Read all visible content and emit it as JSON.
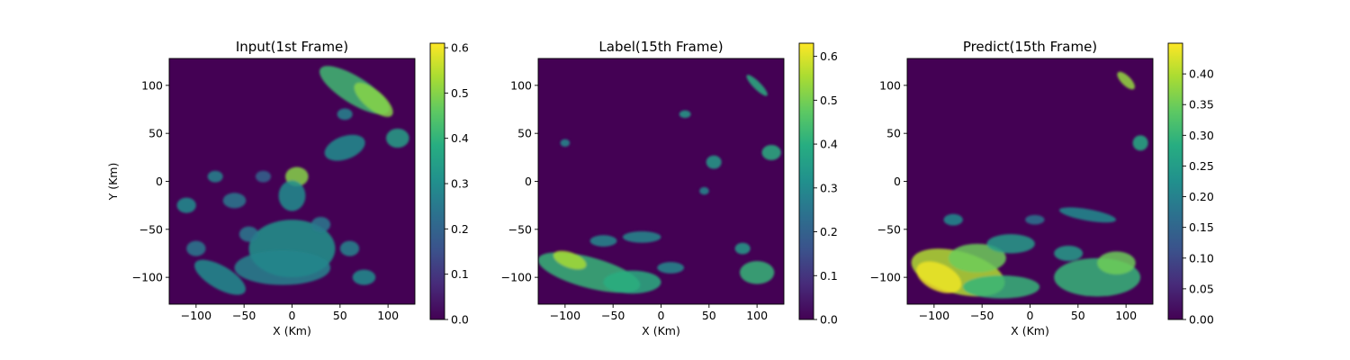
{
  "chart_data": [
    {
      "type": "heatmap",
      "title": "Input(1st Frame)",
      "xlabel": "X (Km)",
      "ylabel": "Y (Km)",
      "xlim": [
        -128,
        128
      ],
      "ylim": [
        -128,
        128
      ],
      "xticks": [
        -100,
        -50,
        0,
        50,
        100
      ],
      "yticks": [
        -100,
        -50,
        0,
        50,
        100
      ],
      "xtick_labels": [
        "−100",
        "−50",
        "0",
        "50",
        "100"
      ],
      "ytick_labels": [
        "−100",
        "−50",
        "0",
        "50",
        "100"
      ],
      "colorbar": {
        "range": [
          0,
          0.61
        ],
        "ticks": [
          0,
          0.1,
          0.2,
          0.3,
          0.4,
          0.5,
          0.6
        ],
        "tick_labels": [
          "0.0",
          "0.1",
          "0.2",
          "0.3",
          "0.4",
          "0.5",
          "0.6"
        ]
      },
      "regions": [
        {
          "x": 65,
          "y": 95,
          "rx": 42,
          "ry": 14,
          "rot": -32,
          "v": 0.42
        },
        {
          "x": 85,
          "y": 85,
          "rx": 25,
          "ry": 10,
          "rot": -40,
          "v": 0.5
        },
        {
          "x": 5,
          "y": 5,
          "rx": 12,
          "ry": 10,
          "rot": 0,
          "v": 0.5
        },
        {
          "x": 0,
          "y": -15,
          "rx": 14,
          "ry": 16,
          "rot": 0,
          "v": 0.3
        },
        {
          "x": 0,
          "y": -70,
          "rx": 45,
          "ry": 30,
          "rot": 0,
          "v": 0.32
        },
        {
          "x": -10,
          "y": -90,
          "rx": 50,
          "ry": 18,
          "rot": 0,
          "v": 0.28
        },
        {
          "x": 55,
          "y": 35,
          "rx": 22,
          "ry": 12,
          "rot": 20,
          "v": 0.3
        },
        {
          "x": 110,
          "y": 45,
          "rx": 12,
          "ry": 10,
          "rot": 0,
          "v": 0.35
        },
        {
          "x": 55,
          "y": 70,
          "rx": 8,
          "ry": 6,
          "rot": 0,
          "v": 0.28
        },
        {
          "x": -75,
          "y": -100,
          "rx": 30,
          "ry": 12,
          "rot": -30,
          "v": 0.3
        },
        {
          "x": -110,
          "y": -25,
          "rx": 10,
          "ry": 8,
          "rot": 0,
          "v": 0.3
        },
        {
          "x": -80,
          "y": 5,
          "rx": 8,
          "ry": 6,
          "rot": 0,
          "v": 0.28
        },
        {
          "x": -60,
          "y": -20,
          "rx": 12,
          "ry": 8,
          "rot": 0,
          "v": 0.25
        },
        {
          "x": 75,
          "y": -100,
          "rx": 12,
          "ry": 8,
          "rot": 0,
          "v": 0.3
        },
        {
          "x": 60,
          "y": -70,
          "rx": 10,
          "ry": 8,
          "rot": 0,
          "v": 0.28
        },
        {
          "x": -45,
          "y": -55,
          "rx": 10,
          "ry": 8,
          "rot": 0,
          "v": 0.25
        },
        {
          "x": -100,
          "y": -70,
          "rx": 10,
          "ry": 8,
          "rot": 0,
          "v": 0.25
        },
        {
          "x": 30,
          "y": -45,
          "rx": 10,
          "ry": 8,
          "rot": 0,
          "v": 0.25
        },
        {
          "x": -30,
          "y": 5,
          "rx": 8,
          "ry": 6,
          "rot": 0,
          "v": 0.2
        }
      ]
    },
    {
      "type": "heatmap",
      "title": "Label(15th Frame)",
      "xlabel": "X (Km)",
      "ylabel": "",
      "xlim": [
        -128,
        128
      ],
      "ylim": [
        -128,
        128
      ],
      "xticks": [
        -100,
        -50,
        0,
        50,
        100
      ],
      "yticks": [
        -100,
        -50,
        0,
        50,
        100
      ],
      "xtick_labels": [
        "−100",
        "−50",
        "0",
        "50",
        "100"
      ],
      "ytick_labels": [
        "−100",
        "−50",
        "0",
        "50",
        "100"
      ],
      "colorbar": {
        "range": [
          0,
          0.63
        ],
        "ticks": [
          0,
          0.1,
          0.2,
          0.3,
          0.4,
          0.5,
          0.6
        ],
        "tick_labels": [
          "0.0",
          "0.1",
          "0.2",
          "0.3",
          "0.4",
          "0.5",
          "0.6"
        ]
      },
      "regions": [
        {
          "x": -75,
          "y": -95,
          "rx": 55,
          "ry": 16,
          "rot": -15,
          "v": 0.42
        },
        {
          "x": -95,
          "y": -82,
          "rx": 18,
          "ry": 8,
          "rot": -20,
          "v": 0.55
        },
        {
          "x": -30,
          "y": -105,
          "rx": 30,
          "ry": 12,
          "rot": 0,
          "v": 0.4
        },
        {
          "x": -20,
          "y": -58,
          "rx": 20,
          "ry": 6,
          "rot": 0,
          "v": 0.3
        },
        {
          "x": -60,
          "y": -62,
          "rx": 14,
          "ry": 6,
          "rot": 0,
          "v": 0.3
        },
        {
          "x": 100,
          "y": -95,
          "rx": 18,
          "ry": 12,
          "rot": 0,
          "v": 0.42
        },
        {
          "x": 85,
          "y": -70,
          "rx": 8,
          "ry": 6,
          "rot": 0,
          "v": 0.35
        },
        {
          "x": 100,
          "y": 100,
          "rx": 15,
          "ry": 4,
          "rot": -45,
          "v": 0.4
        },
        {
          "x": 115,
          "y": 30,
          "rx": 10,
          "ry": 8,
          "rot": 0,
          "v": 0.4
        },
        {
          "x": 55,
          "y": 20,
          "rx": 8,
          "ry": 7,
          "rot": 0,
          "v": 0.35
        },
        {
          "x": 25,
          "y": 70,
          "rx": 6,
          "ry": 4,
          "rot": 0,
          "v": 0.35
        },
        {
          "x": -100,
          "y": 40,
          "rx": 5,
          "ry": 4,
          "rot": 0,
          "v": 0.3
        },
        {
          "x": 45,
          "y": -10,
          "rx": 5,
          "ry": 4,
          "rot": 0,
          "v": 0.3
        },
        {
          "x": 10,
          "y": -90,
          "rx": 14,
          "ry": 6,
          "rot": 0,
          "v": 0.3
        }
      ]
    },
    {
      "type": "heatmap",
      "title": "Predict(15th Frame)",
      "xlabel": "X (Km)",
      "ylabel": "",
      "xlim": [
        -128,
        128
      ],
      "ylim": [
        -128,
        128
      ],
      "xticks": [
        -100,
        -50,
        0,
        50,
        100
      ],
      "yticks": [
        -100,
        -50,
        0,
        50,
        100
      ],
      "xtick_labels": [
        "−100",
        "−50",
        "0",
        "50",
        "100"
      ],
      "ytick_labels": [
        "−100",
        "−50",
        "0",
        "50",
        "100"
      ],
      "colorbar": {
        "range": [
          0,
          0.45
        ],
        "ticks": [
          0,
          0.05,
          0.1,
          0.15,
          0.2,
          0.25,
          0.3,
          0.35,
          0.4
        ],
        "tick_labels": [
          "0.00",
          "0.05",
          "0.10",
          "0.15",
          "0.20",
          "0.25",
          "0.30",
          "0.35",
          "0.40"
        ]
      },
      "regions": [
        {
          "x": -75,
          "y": -95,
          "rx": 50,
          "ry": 22,
          "rot": -15,
          "v": 0.4
        },
        {
          "x": -95,
          "y": -100,
          "rx": 25,
          "ry": 14,
          "rot": -25,
          "v": 0.44
        },
        {
          "x": -55,
          "y": -80,
          "rx": 30,
          "ry": 15,
          "rot": 0,
          "v": 0.35
        },
        {
          "x": -30,
          "y": -110,
          "rx": 40,
          "ry": 12,
          "rot": 0,
          "v": 0.3
        },
        {
          "x": 70,
          "y": -100,
          "rx": 45,
          "ry": 20,
          "rot": 0,
          "v": 0.3
        },
        {
          "x": 90,
          "y": -85,
          "rx": 20,
          "ry": 12,
          "rot": 0,
          "v": 0.35
        },
        {
          "x": -20,
          "y": -65,
          "rx": 25,
          "ry": 10,
          "rot": 0,
          "v": 0.25
        },
        {
          "x": 40,
          "y": -75,
          "rx": 15,
          "ry": 8,
          "rot": 0,
          "v": 0.25
        },
        {
          "x": 60,
          "y": -35,
          "rx": 30,
          "ry": 6,
          "rot": -10,
          "v": 0.22
        },
        {
          "x": 100,
          "y": 105,
          "rx": 12,
          "ry": 5,
          "rot": -45,
          "v": 0.38
        },
        {
          "x": 115,
          "y": 40,
          "rx": 8,
          "ry": 8,
          "rot": 0,
          "v": 0.28
        },
        {
          "x": -80,
          "y": -40,
          "rx": 10,
          "ry": 6,
          "rot": 0,
          "v": 0.22
        },
        {
          "x": 5,
          "y": -40,
          "rx": 10,
          "ry": 5,
          "rot": 0,
          "v": 0.18
        }
      ]
    }
  ]
}
